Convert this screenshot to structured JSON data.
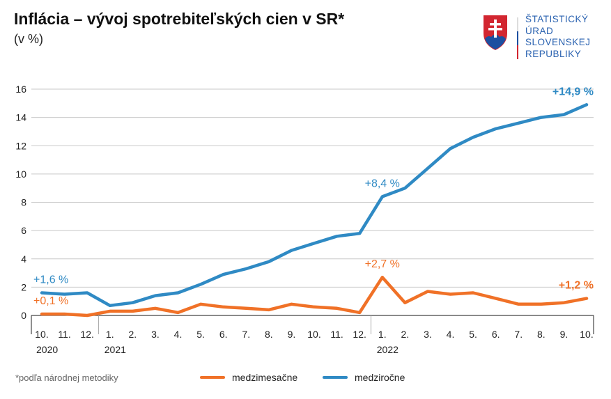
{
  "header": {
    "title": "Inflácia – vývoj spotrebiteľských cien v SR*",
    "subtitle": "(v %)"
  },
  "logo": {
    "lines": [
      "ŠTATISTICKÝ",
      "ÚRAD",
      "SLOVENSKEJ",
      "REPUBLIKY"
    ]
  },
  "footnote": "*podľa národnej metodiky",
  "chart_data": {
    "type": "line",
    "title": "Inflácia – vývoj spotrebiteľských cien v SR*",
    "ylabel": "(v %)",
    "ylim": [
      0,
      16
    ],
    "yticks": [
      0,
      2,
      4,
      6,
      8,
      10,
      12,
      14,
      16
    ],
    "grid": true,
    "legend": "bottom",
    "x": [
      "10.",
      "11.",
      "12.",
      "1.",
      "2.",
      "3.",
      "4.",
      "5.",
      "6.",
      "7.",
      "8.",
      "9.",
      "10.",
      "11.",
      "12.",
      "1.",
      "2.",
      "3.",
      "4.",
      "5.",
      "6.",
      "7.",
      "8.",
      "9.",
      "10."
    ],
    "years": [
      {
        "label": "2020",
        "start": 0
      },
      {
        "label": "2021",
        "start": 3
      },
      {
        "label": "2022",
        "start": 15
      }
    ],
    "series": [
      {
        "name": "medzimesačne",
        "color": "#f07127",
        "values": [
          0.1,
          0.1,
          0.0,
          0.3,
          0.3,
          0.5,
          0.2,
          0.8,
          0.6,
          0.5,
          0.4,
          0.8,
          0.6,
          0.5,
          0.2,
          2.7,
          0.9,
          1.7,
          1.5,
          1.6,
          1.2,
          0.8,
          0.8,
          0.9,
          1.2
        ]
      },
      {
        "name": "medziročne",
        "color": "#2f8ac4",
        "values": [
          1.6,
          1.5,
          1.6,
          0.7,
          0.9,
          1.4,
          1.6,
          2.2,
          2.9,
          3.3,
          3.8,
          4.6,
          5.1,
          5.6,
          5.8,
          8.4,
          9.0,
          10.4,
          11.8,
          12.6,
          13.2,
          13.6,
          14.0,
          14.2,
          14.9
        ]
      }
    ],
    "annotations": [
      {
        "series": 1,
        "index": 0,
        "text": "+1,6 %",
        "bold": false
      },
      {
        "series": 0,
        "index": 0,
        "text": "+0,1 %",
        "bold": false
      },
      {
        "series": 1,
        "index": 15,
        "text": "+8,4 %",
        "bold": false
      },
      {
        "series": 0,
        "index": 15,
        "text": "+2,7 %",
        "bold": false
      },
      {
        "series": 1,
        "index": 24,
        "text": "+14,9 %",
        "bold": true
      },
      {
        "series": 0,
        "index": 24,
        "text": "+1,2 %",
        "bold": true
      }
    ]
  }
}
